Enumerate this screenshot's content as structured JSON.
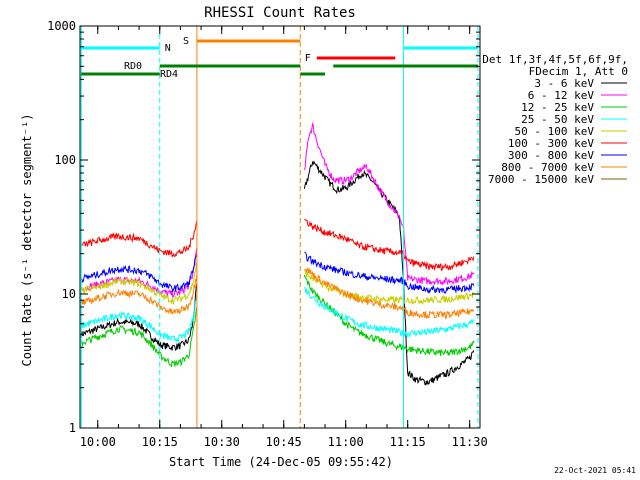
{
  "chart_data": {
    "type": "line",
    "title": "RHESSI Count Rates",
    "xlabel": "Start Time (24-Dec-05 09:55:42)",
    "ylabel": "Count Rate (s⁻¹ detector segment⁻¹)",
    "xlim": [
      "09:55:42",
      "11:32:30"
    ],
    "ylim": [
      1,
      1000
    ],
    "yscale": "log",
    "xticks": [
      "10:00",
      "10:15",
      "10:30",
      "10:45",
      "11:00",
      "11:15",
      "11:30"
    ],
    "yticks": [
      "1",
      "10",
      "100",
      "1000"
    ],
    "legend": {
      "position": "right",
      "header": [
        "Det 1f,3f,4f,5f,6f,9f,",
        "FDecim 1, Att 0"
      ],
      "entries": [
        {
          "label": "3 - 6 keV",
          "color": "#000000"
        },
        {
          "label": "6 - 12 keV",
          "color": "#ff00ff"
        },
        {
          "label": "12 - 25 keV",
          "color": "#00cc00"
        },
        {
          "label": "25 - 50 keV",
          "color": "#00ffff"
        },
        {
          "label": "50 - 100 keV",
          "color": "#cccc00"
        },
        {
          "label": "100 - 300 keV",
          "color": "#ff0000"
        },
        {
          "label": "300 - 800 keV",
          "color": "#0000ff"
        },
        {
          "label": "800 - 7000 keV",
          "color": "#ff8000"
        },
        {
          "label": "7000 - 15000 keV",
          "color": "#806000"
        }
      ]
    },
    "series": [
      {
        "name": "3 - 6 keV",
        "color": "#000000",
        "x": [
          "09:56",
          "10:00",
          "10:05",
          "10:10",
          "10:13",
          "10:15",
          "10:18",
          "10:20",
          "10:22",
          "10:23",
          "10:24",
          "10:49",
          "10:50",
          "10:52",
          "10:54",
          "10:56",
          "10:58",
          "11:00",
          "11:02",
          "11:04",
          "11:06",
          "11:08",
          "11:10",
          "11:12",
          "11:13",
          "11:14",
          "11:15",
          "11:17",
          "11:20",
          "11:25",
          "11:30",
          "11:31"
        ],
        "y": [
          5,
          5.5,
          6.2,
          6.0,
          4.8,
          4.2,
          4.0,
          4.1,
          4.5,
          6.0,
          12,
          0,
          60,
          98,
          82,
          68,
          60,
          62,
          70,
          80,
          72,
          60,
          50,
          42,
          38,
          12,
          2.6,
          2.3,
          2.2,
          2.6,
          3.3,
          3.8
        ]
      },
      {
        "name": "6 - 12 keV",
        "color": "#ff00ff",
        "x": [
          "09:56",
          "10:00",
          "10:05",
          "10:10",
          "10:13",
          "10:15",
          "10:18",
          "10:20",
          "10:22",
          "10:23",
          "10:24",
          "10:49",
          "10:50",
          "10:51",
          "10:52",
          "10:53",
          "10:55",
          "10:57",
          "10:59",
          "11:01",
          "11:03",
          "11:05",
          "11:07",
          "11:09",
          "11:11",
          "11:13",
          "11:14",
          "11:15",
          "11:20",
          "11:25",
          "11:30",
          "11:31"
        ],
        "y": [
          11,
          11.8,
          12.8,
          12.5,
          11.5,
          10.5,
          10,
          10.3,
          11.5,
          14,
          22,
          0,
          80,
          150,
          180,
          140,
          92,
          72,
          70,
          72,
          82,
          90,
          70,
          55,
          45,
          38,
          30,
          13,
          12.5,
          12.5,
          13.5,
          14
        ]
      },
      {
        "name": "12 - 25 keV",
        "color": "#00cc00",
        "x": [
          "09:56",
          "10:00",
          "10:05",
          "10:10",
          "10:13",
          "10:15",
          "10:18",
          "10:20",
          "10:22",
          "10:23",
          "10:24",
          "10:49",
          "10:50",
          "10:52",
          "10:55",
          "10:58",
          "11:00",
          "11:03",
          "11:06",
          "11:09",
          "11:12",
          "11:14",
          "11:15",
          "11:20",
          "11:25",
          "11:30",
          "11:31"
        ],
        "y": [
          4.3,
          4.8,
          5.5,
          5.2,
          4.2,
          3.5,
          3.0,
          3.1,
          3.5,
          5.0,
          8.0,
          0,
          13.5,
          10.5,
          8.5,
          7,
          6,
          5.2,
          4.8,
          4.4,
          4.1,
          4.0,
          3.9,
          3.7,
          3.6,
          4.0,
          4.3
        ]
      },
      {
        "name": "25 - 50 keV",
        "color": "#00ffff",
        "x": [
          "09:56",
          "10:00",
          "10:05",
          "10:10",
          "10:13",
          "10:15",
          "10:18",
          "10:20",
          "10:22",
          "10:23",
          "10:24",
          "10:49",
          "10:50",
          "10:52",
          "10:55",
          "10:58",
          "11:00",
          "11:03",
          "11:06",
          "11:09",
          "11:12",
          "11:14",
          "11:15",
          "11:20",
          "11:25",
          "11:30",
          "11:31"
        ],
        "y": [
          5.8,
          6.3,
          7.0,
          6.6,
          5.7,
          5.0,
          4.6,
          4.7,
          5.2,
          6.5,
          10,
          0,
          11,
          9.5,
          8.0,
          7.2,
          6.6,
          6.0,
          5.7,
          5.5,
          5.3,
          5.1,
          5.1,
          5.2,
          5.5,
          6.0,
          6.3
        ]
      },
      {
        "name": "50 - 100 keV",
        "color": "#cccc00",
        "x": [
          "09:56",
          "10:00",
          "10:05",
          "10:10",
          "10:13",
          "10:15",
          "10:18",
          "10:20",
          "10:22",
          "10:23",
          "10:24",
          "10:49",
          "10:50",
          "10:52",
          "10:55",
          "10:58",
          "11:00",
          "11:03",
          "11:06",
          "11:09",
          "11:12",
          "11:14",
          "11:15",
          "11:20",
          "11:25",
          "11:30",
          "11:31"
        ],
        "y": [
          10.5,
          11.3,
          12.5,
          12,
          10.8,
          9.8,
          9.0,
          9.2,
          10,
          12,
          17,
          0,
          14.5,
          13,
          11.5,
          10.5,
          10,
          9.6,
          9.3,
          9.1,
          9.0,
          9.0,
          9.0,
          9.0,
          9.2,
          9.7,
          10
        ]
      },
      {
        "name": "100 - 300 keV",
        "color": "#ff0000",
        "x": [
          "09:56",
          "10:00",
          "10:05",
          "10:10",
          "10:13",
          "10:15",
          "10:18",
          "10:20",
          "10:22",
          "10:23",
          "10:24",
          "10:49",
          "10:50",
          "10:52",
          "10:55",
          "10:58",
          "11:00",
          "11:03",
          "11:06",
          "11:09",
          "11:12",
          "11:14",
          "11:15",
          "11:20",
          "11:25",
          "11:30",
          "11:31"
        ],
        "y": [
          23,
          25,
          27,
          26,
          23,
          21,
          20,
          20.5,
          22,
          27,
          35,
          0,
          36,
          32,
          29,
          27,
          26,
          23,
          22,
          21,
          20.5,
          20,
          17.5,
          16,
          16,
          18,
          19
        ]
      },
      {
        "name": "300 - 800 keV",
        "color": "#0000ff",
        "x": [
          "09:56",
          "10:00",
          "10:05",
          "10:10",
          "10:13",
          "10:15",
          "10:18",
          "10:20",
          "10:22",
          "10:23",
          "10:24",
          "10:49",
          "10:50",
          "10:52",
          "10:55",
          "10:58",
          "11:00",
          "11:03",
          "11:06",
          "11:09",
          "11:12",
          "11:14",
          "11:15",
          "11:20",
          "11:25",
          "11:30",
          "11:31"
        ],
        "y": [
          13,
          14,
          15.5,
          15,
          13.5,
          12,
          11,
          11.2,
          12,
          15,
          20,
          0,
          19.5,
          17.5,
          16,
          15,
          14.5,
          13.8,
          13.3,
          13,
          12.7,
          12.5,
          11.5,
          10.8,
          10.8,
          11.3,
          11.5
        ]
      },
      {
        "name": "800 - 7000 keV",
        "color": "#ff8000",
        "x": [
          "09:56",
          "10:00",
          "10:05",
          "10:10",
          "10:13",
          "10:15",
          "10:18",
          "10:20",
          "10:22",
          "10:23",
          "10:24",
          "10:49",
          "10:50",
          "10:52",
          "10:55",
          "10:58",
          "11:00",
          "11:03",
          "11:06",
          "11:09",
          "11:12",
          "11:14",
          "11:15",
          "11:20",
          "11:25",
          "11:30",
          "11:31"
        ],
        "y": [
          8.5,
          9.3,
          10.3,
          10,
          9.0,
          8.0,
          7.3,
          7.5,
          8.2,
          10,
          14,
          0,
          16,
          14,
          12,
          10.8,
          10,
          9.2,
          8.7,
          8.3,
          8.0,
          7.8,
          7.3,
          7.0,
          7.0,
          7.4,
          7.6
        ]
      }
    ],
    "annotations": {
      "attenuator_state": [
        {
          "label": "S",
          "color": "#ff8000",
          "x_start": "10:24",
          "x_end": "10:49"
        },
        {
          "label": "F",
          "color": "#ff0000",
          "x_start": "10:53",
          "x_end": "11:12"
        }
      ],
      "night_day": [
        {
          "label": "N",
          "color": "#00ffff",
          "x_start": "09:56",
          "x_end": "10:15"
        },
        {
          "label": "",
          "color": "#00ffff",
          "x_start": "11:14",
          "x_end": "11:32"
        }
      ],
      "decimation": [
        {
          "label": "RD0",
          "color": "#008000",
          "x_start": "09:56",
          "x_end": "11:32"
        },
        {
          "label": "RD4",
          "color": "#008000",
          "x_start": "09:56",
          "x_end": "10:55"
        }
      ],
      "vertical_lines": [
        {
          "x": "09:56",
          "color": "#00ffff",
          "style": "solid"
        },
        {
          "x": "10:15",
          "color": "#00ffff",
          "style": "dashed"
        },
        {
          "x": "10:24",
          "color": "#ff8000",
          "style": "solid"
        },
        {
          "x": "10:49",
          "color": "#ff8000",
          "style": "dashed"
        },
        {
          "x": "11:14",
          "color": "#00ffff",
          "style": "solid"
        },
        {
          "x": "11:32",
          "color": "#00ffff",
          "style": "dashed"
        }
      ]
    }
  },
  "footer": {
    "timestamp": "22-Oct-2021 05:41"
  }
}
